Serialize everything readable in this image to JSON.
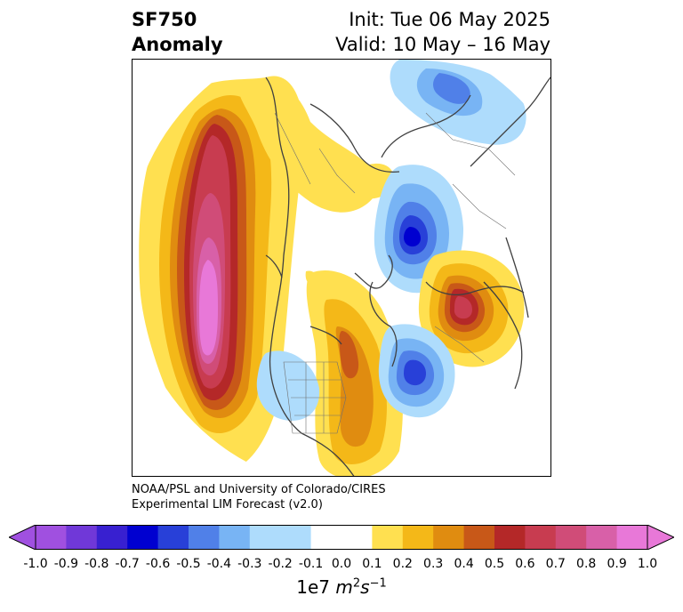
{
  "header": {
    "variable": "SF750",
    "kind": "Anomaly",
    "init": "Init: Tue 06 May 2025",
    "valid": "Valid: 10 May – 16 May"
  },
  "credit": {
    "line1": "NOAA/PSL and University of Colorado/CIRES",
    "line2": "Experimental LIM Forecast (v2.0)"
  },
  "colorbar": {
    "ticks": [
      "-1.0",
      "-0.9",
      "-0.8",
      "-0.7",
      "-0.6",
      "-0.5",
      "-0.4",
      "-0.3",
      "-0.2",
      "-0.1",
      "0.0",
      "0.1",
      "0.2",
      "0.3",
      "0.4",
      "0.5",
      "0.6",
      "0.7",
      "0.8",
      "0.9",
      "1.0"
    ],
    "colors": [
      "#a050e0",
      "#7038d8",
      "#3820d0",
      "#0000d0",
      "#2840d8",
      "#5080e8",
      "#78b4f4",
      "#aedcfc",
      "#ffffff",
      "#ffe050",
      "#f4b818",
      "#e08c10",
      "#c85818",
      "#b42828",
      "#c83c50",
      "#d04c78",
      "#d860a8",
      "#e878d8"
    ],
    "scale_label": "1e7 m²s⁻¹",
    "scale_prefix": "1e7 ",
    "scale_m": "m",
    "scale_m_exp": "2",
    "scale_s": "s",
    "scale_s_exp": "−1"
  }
}
